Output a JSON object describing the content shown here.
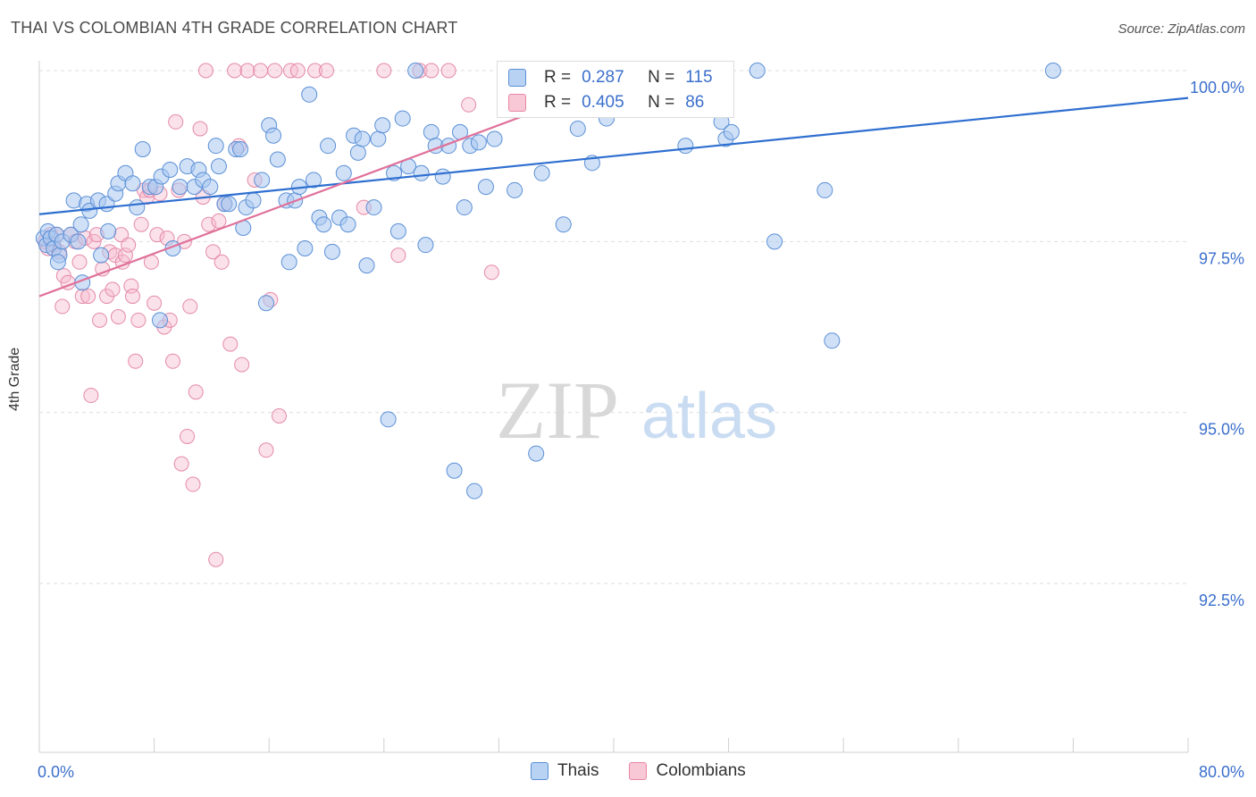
{
  "title": "THAI VS COLOMBIAN 4TH GRADE CORRELATION CHART",
  "source": "Source: ZipAtlas.com",
  "watermark": {
    "zip": "ZIP",
    "atlas": "atlas"
  },
  "stats": {
    "blue": {
      "r_label": "R =",
      "r_value": "0.287",
      "n_label": "N =",
      "n_value": "115"
    },
    "pink": {
      "r_label": "R =",
      "r_value": "0.405",
      "n_label": "N =",
      "n_value": "86"
    }
  },
  "legend": {
    "thais": "Thais",
    "colombians": "Colombians"
  },
  "colors": {
    "blue_fill": "#a9c8f0",
    "blue_line": "#2f6fd0",
    "pink_fill": "#f6bccf",
    "pink_line": "#e0719a",
    "tick_label": "#3b6fcc"
  },
  "chart_data": {
    "type": "scatter",
    "xlabel": "",
    "ylabel": "4th Grade",
    "xlim": [
      0,
      80
    ],
    "ylim": [
      90.0,
      100.4
    ],
    "x_tick_labels": [
      {
        "value": 0,
        "label": "0.0%"
      },
      {
        "value": 80,
        "label": "80.0%"
      }
    ],
    "y_tick_labels": [
      {
        "value": 100.0,
        "label": "100.0%"
      },
      {
        "value": 97.5,
        "label": "97.5%"
      },
      {
        "value": 95.0,
        "label": "95.0%"
      },
      {
        "value": 92.5,
        "label": "92.5%"
      }
    ],
    "legend_position": "bottom-center",
    "series": [
      {
        "name": "Thais",
        "color": "#a9c8f0",
        "trendline": {
          "x": [
            0,
            80
          ],
          "y": [
            97.9,
            99.6
          ]
        },
        "points": [
          [
            0.3,
            97.55
          ],
          [
            0.5,
            97.45
          ],
          [
            0.6,
            97.65
          ],
          [
            0.8,
            97.55
          ],
          [
            1.0,
            97.4
          ],
          [
            1.2,
            97.6
          ],
          [
            1.4,
            97.3
          ],
          [
            1.6,
            97.5
          ],
          [
            2.2,
            97.6
          ],
          [
            2.4,
            98.1
          ],
          [
            2.9,
            97.75
          ],
          [
            3.3,
            98.05
          ],
          [
            3.5,
            97.95
          ],
          [
            4.1,
            98.1
          ],
          [
            4.7,
            98.05
          ],
          [
            4.8,
            97.65
          ],
          [
            5.3,
            98.2
          ],
          [
            5.5,
            98.35
          ],
          [
            6.0,
            98.5
          ],
          [
            6.5,
            98.35
          ],
          [
            6.8,
            98.0
          ],
          [
            7.2,
            98.85
          ],
          [
            7.7,
            98.3
          ],
          [
            8.1,
            98.3
          ],
          [
            8.5,
            98.45
          ],
          [
            9.1,
            98.55
          ],
          [
            9.3,
            97.4
          ],
          [
            9.8,
            98.3
          ],
          [
            10.3,
            98.6
          ],
          [
            10.8,
            98.3
          ],
          [
            11.1,
            98.55
          ],
          [
            11.4,
            98.4
          ],
          [
            11.9,
            98.3
          ],
          [
            12.3,
            98.9
          ],
          [
            12.5,
            98.6
          ],
          [
            12.9,
            98.05
          ],
          [
            13.2,
            98.05
          ],
          [
            13.7,
            98.85
          ],
          [
            14.0,
            98.85
          ],
          [
            14.2,
            97.7
          ],
          [
            14.4,
            98.0
          ],
          [
            14.9,
            98.1
          ],
          [
            15.5,
            98.4
          ],
          [
            15.8,
            96.6
          ],
          [
            16.0,
            99.2
          ],
          [
            16.3,
            99.05
          ],
          [
            16.6,
            98.7
          ],
          [
            17.2,
            98.1
          ],
          [
            17.4,
            97.2
          ],
          [
            17.8,
            98.1
          ],
          [
            18.1,
            98.3
          ],
          [
            18.5,
            97.4
          ],
          [
            18.8,
            99.65
          ],
          [
            19.1,
            98.4
          ],
          [
            19.5,
            97.85
          ],
          [
            19.8,
            97.75
          ],
          [
            20.1,
            98.9
          ],
          [
            20.4,
            97.35
          ],
          [
            20.9,
            97.85
          ],
          [
            21.2,
            98.5
          ],
          [
            21.5,
            97.75
          ],
          [
            21.9,
            99.05
          ],
          [
            22.2,
            98.8
          ],
          [
            22.5,
            99.0
          ],
          [
            22.8,
            97.15
          ],
          [
            23.3,
            98.0
          ],
          [
            23.6,
            99.0
          ],
          [
            23.9,
            99.2
          ],
          [
            24.3,
            94.9
          ],
          [
            24.7,
            98.5
          ],
          [
            25.0,
            97.65
          ],
          [
            25.3,
            99.3
          ],
          [
            25.7,
            98.6
          ],
          [
            26.2,
            100.0
          ],
          [
            26.6,
            98.5
          ],
          [
            26.9,
            97.45
          ],
          [
            27.3,
            99.1
          ],
          [
            27.6,
            98.9
          ],
          [
            28.1,
            98.45
          ],
          [
            28.5,
            98.9
          ],
          [
            28.9,
            94.15
          ],
          [
            29.3,
            99.1
          ],
          [
            29.6,
            98.0
          ],
          [
            30.0,
            98.9
          ],
          [
            30.3,
            93.85
          ],
          [
            30.6,
            98.95
          ],
          [
            31.1,
            98.3
          ],
          [
            31.7,
            99.0
          ],
          [
            32.5,
            100.0
          ],
          [
            33.1,
            98.25
          ],
          [
            34.0,
            99.75
          ],
          [
            34.6,
            94.4
          ],
          [
            35.0,
            98.5
          ],
          [
            36.0,
            99.5
          ],
          [
            36.5,
            97.75
          ],
          [
            37.5,
            99.15
          ],
          [
            38.5,
            98.65
          ],
          [
            39.5,
            99.3
          ],
          [
            40.0,
            100.0
          ],
          [
            41.5,
            100.0
          ],
          [
            45.0,
            98.9
          ],
          [
            47.0,
            100.0
          ],
          [
            47.5,
            99.25
          ],
          [
            47.8,
            99.0
          ],
          [
            48.2,
            99.1
          ],
          [
            50.0,
            100.0
          ],
          [
            51.2,
            97.5
          ],
          [
            54.7,
            98.25
          ],
          [
            55.2,
            96.05
          ],
          [
            70.6,
            100.0
          ],
          [
            1.3,
            97.2
          ],
          [
            3.0,
            96.9
          ],
          [
            2.7,
            97.5
          ],
          [
            8.4,
            96.35
          ],
          [
            4.3,
            97.3
          ]
        ]
      },
      {
        "name": "Colombians",
        "color": "#f6bccf",
        "trendline": {
          "x": [
            0,
            39
          ],
          "y": [
            96.7,
            99.75
          ]
        },
        "points": [
          [
            0.4,
            97.5
          ],
          [
            0.6,
            97.4
          ],
          [
            0.8,
            97.6
          ],
          [
            1.0,
            97.45
          ],
          [
            1.2,
            97.6
          ],
          [
            1.4,
            97.35
          ],
          [
            1.6,
            96.55
          ],
          [
            1.7,
            97.0
          ],
          [
            2.0,
            96.9
          ],
          [
            2.2,
            97.6
          ],
          [
            2.5,
            97.5
          ],
          [
            2.8,
            97.2
          ],
          [
            3.0,
            96.7
          ],
          [
            3.2,
            97.55
          ],
          [
            3.4,
            96.7
          ],
          [
            3.6,
            95.25
          ],
          [
            3.8,
            97.5
          ],
          [
            4.0,
            97.6
          ],
          [
            4.2,
            96.35
          ],
          [
            4.4,
            97.1
          ],
          [
            4.7,
            96.7
          ],
          [
            4.9,
            97.35
          ],
          [
            5.1,
            96.8
          ],
          [
            5.3,
            97.3
          ],
          [
            5.5,
            96.4
          ],
          [
            5.7,
            97.6
          ],
          [
            5.8,
            97.2
          ],
          [
            6.0,
            97.3
          ],
          [
            6.2,
            97.45
          ],
          [
            6.4,
            96.85
          ],
          [
            6.5,
            96.7
          ],
          [
            6.7,
            95.75
          ],
          [
            6.9,
            96.35
          ],
          [
            7.1,
            97.75
          ],
          [
            7.3,
            98.25
          ],
          [
            7.5,
            98.15
          ],
          [
            7.7,
            98.25
          ],
          [
            7.8,
            97.2
          ],
          [
            8.0,
            96.6
          ],
          [
            8.2,
            97.6
          ],
          [
            8.4,
            98.2
          ],
          [
            8.7,
            96.25
          ],
          [
            8.9,
            97.55
          ],
          [
            9.1,
            96.35
          ],
          [
            9.3,
            95.75
          ],
          [
            9.5,
            99.25
          ],
          [
            9.7,
            98.25
          ],
          [
            9.9,
            94.25
          ],
          [
            10.1,
            97.5
          ],
          [
            10.3,
            94.65
          ],
          [
            10.5,
            96.55
          ],
          [
            10.7,
            93.95
          ],
          [
            10.9,
            95.3
          ],
          [
            11.2,
            99.15
          ],
          [
            11.4,
            98.15
          ],
          [
            11.6,
            100.0
          ],
          [
            11.8,
            97.75
          ],
          [
            12.1,
            97.35
          ],
          [
            12.3,
            92.85
          ],
          [
            12.5,
            97.8
          ],
          [
            12.7,
            97.2
          ],
          [
            12.9,
            98.05
          ],
          [
            13.3,
            96.0
          ],
          [
            13.6,
            100.0
          ],
          [
            13.9,
            98.9
          ],
          [
            14.1,
            95.7
          ],
          [
            14.5,
            100.0
          ],
          [
            15.0,
            98.4
          ],
          [
            15.4,
            100.0
          ],
          [
            15.8,
            94.45
          ],
          [
            16.1,
            96.65
          ],
          [
            16.4,
            100.0
          ],
          [
            16.7,
            94.95
          ],
          [
            17.5,
            100.0
          ],
          [
            18.0,
            100.0
          ],
          [
            19.2,
            100.0
          ],
          [
            20.0,
            100.0
          ],
          [
            22.6,
            98.0
          ],
          [
            24.0,
            100.0
          ],
          [
            25.0,
            97.3
          ],
          [
            26.5,
            100.0
          ],
          [
            27.3,
            100.0
          ],
          [
            28.5,
            100.0
          ],
          [
            29.9,
            99.5
          ],
          [
            31.5,
            97.05
          ],
          [
            33.0,
            100.0
          ]
        ]
      }
    ]
  }
}
